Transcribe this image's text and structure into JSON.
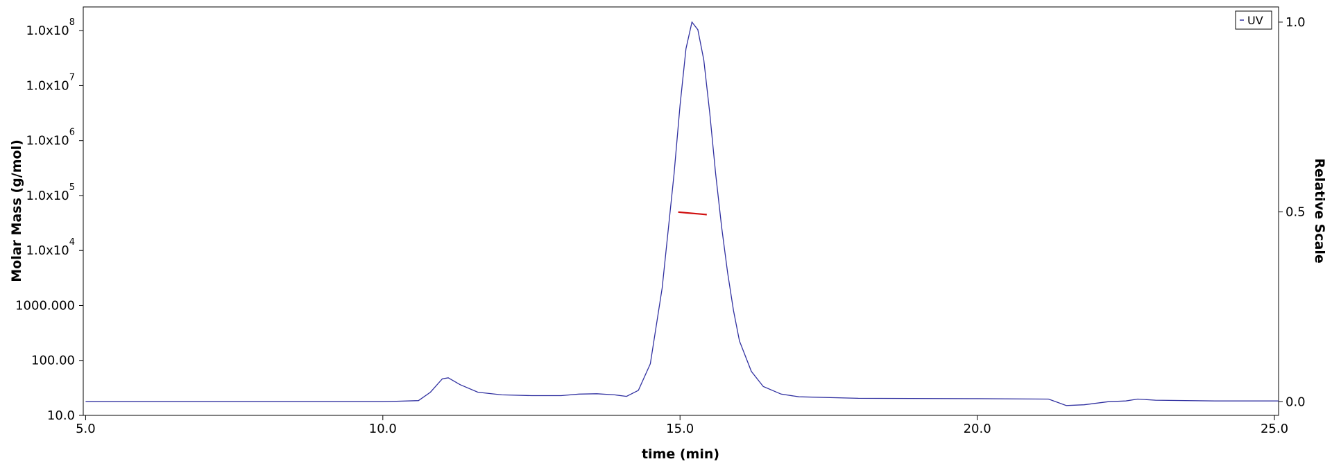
{
  "chart_data": {
    "type": "line",
    "xlabel": "time (min)",
    "ylabel": "Molar Mass (g/mol)",
    "y2label": "Relative Scale",
    "xlim": [
      4.96,
      25.07
    ],
    "xticks": [
      {
        "value": 5,
        "label": "5.0"
      },
      {
        "value": 10,
        "label": "10.0"
      },
      {
        "value": 15,
        "label": "15.0"
      },
      {
        "value": 20,
        "label": "20.0"
      },
      {
        "value": 25,
        "label": "25.0"
      }
    ],
    "ylim": [
      10,
      270000000
    ],
    "yscale": "log",
    "yticks": [
      {
        "value": 10,
        "label": "10.0"
      },
      {
        "value": 100,
        "label": "100.00"
      },
      {
        "value": 1000,
        "label": "1000.000"
      },
      {
        "value": 10000,
        "label": "1.0x10",
        "exponent": "4"
      },
      {
        "value": 100000,
        "label": "1.0x10",
        "exponent": "5"
      },
      {
        "value": 1000000,
        "label": "1.0x10",
        "exponent": "6"
      },
      {
        "value": 10000000,
        "label": "1.0x10",
        "exponent": "7"
      },
      {
        "value": 100000000,
        "label": "1.0x10",
        "exponent": "8"
      }
    ],
    "y2lim": [
      -0.036,
      1.04
    ],
    "y2ticks": [
      {
        "value": 0,
        "label": "0.0"
      },
      0.5,
      {
        "value": 1,
        "label": "1.0"
      }
    ],
    "grid": false,
    "legend": "upper right",
    "series": [
      {
        "name": "UV",
        "color": "#3030a0",
        "axis": "y2",
        "x": [
          5.0,
          10.0,
          10.6,
          10.8,
          11.0,
          11.1,
          11.3,
          11.6,
          12.0,
          12.5,
          13.0,
          13.3,
          13.6,
          13.9,
          14.1,
          14.3,
          14.5,
          14.7,
          14.9,
          15.0,
          15.1,
          15.2,
          15.3,
          15.4,
          15.5,
          15.6,
          15.7,
          15.8,
          15.9,
          16.0,
          16.2,
          16.4,
          16.7,
          17.0,
          18.0,
          20.0,
          21.2,
          21.5,
          21.8,
          22.2,
          22.5,
          22.7,
          23.0,
          24.0,
          25.07
        ],
        "values": [
          0.0,
          0.0,
          0.003,
          0.025,
          0.06,
          0.063,
          0.045,
          0.025,
          0.018,
          0.016,
          0.016,
          0.02,
          0.021,
          0.018,
          0.014,
          0.03,
          0.1,
          0.3,
          0.6,
          0.78,
          0.93,
          1.0,
          0.98,
          0.9,
          0.76,
          0.6,
          0.46,
          0.34,
          0.24,
          0.16,
          0.08,
          0.04,
          0.02,
          0.013,
          0.009,
          0.008,
          0.007,
          -0.01,
          -0.008,
          0.0,
          0.002,
          0.007,
          0.004,
          0.002,
          0.002
        ]
      },
      {
        "color": "#d01010",
        "axis": "y",
        "x": [
          14.97,
          15.1,
          15.2,
          15.3,
          15.45
        ],
        "values": [
          50000,
          48500,
          47500,
          46500,
          45000
        ]
      }
    ]
  }
}
